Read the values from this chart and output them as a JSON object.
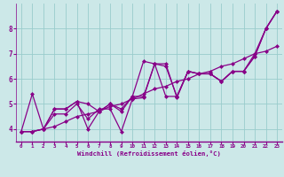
{
  "xlabel": "Windchill (Refroidissement éolien,°C)",
  "background_color": "#cce8e8",
  "line_color": "#880088",
  "xlim": [
    -0.5,
    23.5
  ],
  "ylim": [
    3.5,
    9.0
  ],
  "xticks": [
    0,
    1,
    2,
    3,
    4,
    5,
    6,
    7,
    8,
    9,
    10,
    11,
    12,
    13,
    14,
    15,
    16,
    17,
    18,
    19,
    20,
    21,
    22,
    23
  ],
  "yticks": [
    4,
    5,
    6,
    7,
    8
  ],
  "grid_color": "#99cccc",
  "series": [
    [
      3.9,
      5.4,
      4.0,
      4.8,
      4.8,
      5.1,
      4.0,
      4.7,
      5.0,
      4.7,
      5.3,
      6.7,
      6.6,
      6.5,
      5.3,
      6.3,
      6.2,
      6.2,
      5.9,
      6.3,
      6.3,
      6.9,
      8.0,
      8.7
    ],
    [
      3.9,
      3.9,
      4.0,
      4.1,
      4.3,
      4.5,
      4.6,
      4.7,
      4.9,
      5.0,
      5.2,
      5.4,
      5.6,
      5.7,
      5.9,
      6.0,
      6.2,
      6.3,
      6.5,
      6.6,
      6.8,
      7.0,
      7.1,
      7.3
    ],
    [
      3.9,
      3.9,
      4.0,
      4.8,
      4.8,
      5.1,
      5.0,
      4.7,
      5.0,
      4.8,
      5.3,
      5.3,
      6.6,
      5.3,
      5.3,
      6.3,
      6.2,
      6.2,
      5.9,
      6.3,
      6.3,
      6.9,
      8.0,
      8.7
    ],
    [
      3.9,
      3.9,
      4.0,
      4.6,
      4.6,
      5.0,
      4.4,
      4.8,
      4.8,
      3.9,
      5.2,
      5.25,
      6.6,
      6.6,
      5.25,
      6.3,
      6.2,
      6.2,
      5.9,
      6.3,
      6.3,
      7.0,
      8.0,
      8.7
    ]
  ]
}
